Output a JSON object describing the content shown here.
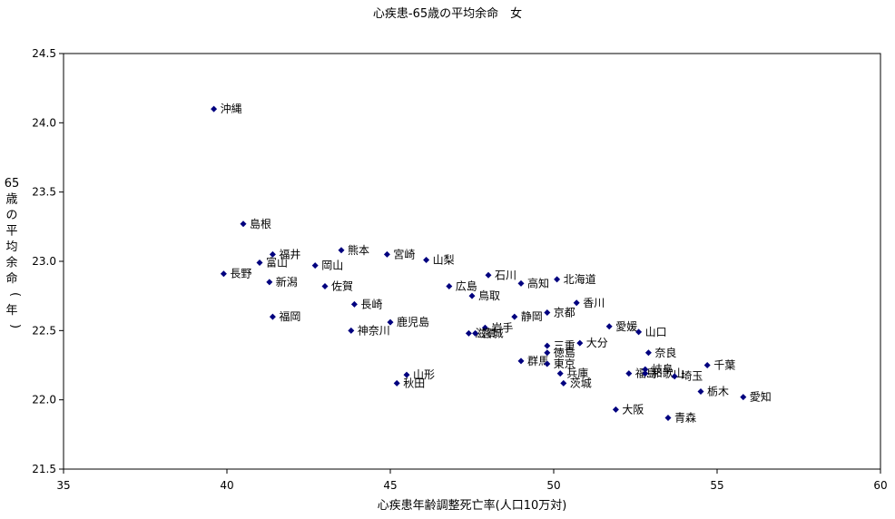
{
  "chart_data": {
    "type": "scatter",
    "title": "心疾患-65歳の平均余命　女",
    "xlabel": "心疾患年齢調整死亡率(人口10万対)",
    "ylabel": "65歳の平均余命(年)",
    "xlim": [
      35,
      60
    ],
    "ylim": [
      21.5,
      24.5
    ],
    "x_ticks": [
      35,
      40,
      45,
      50,
      55,
      60
    ],
    "y_ticks": [
      21.5,
      22.0,
      22.5,
      23.0,
      23.5,
      24.0,
      24.5
    ],
    "x_tick_labels": [
      "35",
      "40",
      "45",
      "50",
      "55",
      "60"
    ],
    "y_tick_labels": [
      "21.5",
      "22.0",
      "22.5",
      "23.0",
      "23.5",
      "24.0",
      "24.5"
    ],
    "grid": false,
    "legend": "none",
    "marker_color": "#00007f",
    "points": [
      {
        "label": "沖縄",
        "x": 39.6,
        "y": 24.1
      },
      {
        "label": "島根",
        "x": 40.5,
        "y": 23.27
      },
      {
        "label": "長野",
        "x": 39.9,
        "y": 22.91
      },
      {
        "label": "富山",
        "x": 41.0,
        "y": 22.99
      },
      {
        "label": "福井",
        "x": 41.4,
        "y": 23.05
      },
      {
        "label": "新潟",
        "x": 41.3,
        "y": 22.85
      },
      {
        "label": "福岡",
        "x": 41.4,
        "y": 22.6
      },
      {
        "label": "岡山",
        "x": 42.7,
        "y": 22.97
      },
      {
        "label": "熊本",
        "x": 43.5,
        "y": 23.08
      },
      {
        "label": "佐賀",
        "x": 43.0,
        "y": 22.82
      },
      {
        "label": "長崎",
        "x": 43.9,
        "y": 22.69
      },
      {
        "label": "神奈川",
        "x": 43.8,
        "y": 22.5
      },
      {
        "label": "宮崎",
        "x": 44.9,
        "y": 23.05
      },
      {
        "label": "鹿児島",
        "x": 45.0,
        "y": 22.56
      },
      {
        "label": "山梨",
        "x": 46.1,
        "y": 23.01
      },
      {
        "label": "山形",
        "x": 45.5,
        "y": 22.18
      },
      {
        "label": "秋田",
        "x": 45.2,
        "y": 22.12
      },
      {
        "label": "広島",
        "x": 46.8,
        "y": 22.82
      },
      {
        "label": "鳥取",
        "x": 47.5,
        "y": 22.75
      },
      {
        "label": "石川",
        "x": 48.0,
        "y": 22.9
      },
      {
        "label": "岩手",
        "x": 47.9,
        "y": 22.52
      },
      {
        "label": "滋賀",
        "x": 47.4,
        "y": 22.48
      },
      {
        "label": "宮城",
        "x": 47.6,
        "y": 22.48
      },
      {
        "label": "高知",
        "x": 49.0,
        "y": 22.84
      },
      {
        "label": "北海道",
        "x": 50.1,
        "y": 22.87
      },
      {
        "label": "静岡",
        "x": 48.8,
        "y": 22.6
      },
      {
        "label": "京都",
        "x": 49.8,
        "y": 22.63
      },
      {
        "label": "香川",
        "x": 50.7,
        "y": 22.7
      },
      {
        "label": "愛媛",
        "x": 51.7,
        "y": 22.53
      },
      {
        "label": "山口",
        "x": 52.6,
        "y": 22.49
      },
      {
        "label": "三重",
        "x": 49.8,
        "y": 22.39
      },
      {
        "label": "大分",
        "x": 50.8,
        "y": 22.41
      },
      {
        "label": "群馬",
        "x": 49.0,
        "y": 22.28
      },
      {
        "label": "徳島",
        "x": 49.8,
        "y": 22.34
      },
      {
        "label": "東京",
        "x": 49.8,
        "y": 22.26
      },
      {
        "label": "兵庫",
        "x": 50.2,
        "y": 22.19
      },
      {
        "label": "茨城",
        "x": 50.3,
        "y": 22.12
      },
      {
        "label": "奈良",
        "x": 52.9,
        "y": 22.34
      },
      {
        "label": "福島",
        "x": 52.3,
        "y": 22.19
      },
      {
        "label": "岐阜",
        "x": 52.8,
        "y": 22.22
      },
      {
        "label": "和歌山",
        "x": 52.8,
        "y": 22.19
      },
      {
        "label": "千葉",
        "x": 54.7,
        "y": 22.25
      },
      {
        "label": "埼玉",
        "x": 53.7,
        "y": 22.17
      },
      {
        "label": "栃木",
        "x": 54.5,
        "y": 22.06
      },
      {
        "label": "愛知",
        "x": 55.8,
        "y": 22.02
      },
      {
        "label": "大阪",
        "x": 51.9,
        "y": 21.93
      },
      {
        "label": "青森",
        "x": 53.5,
        "y": 21.87
      }
    ]
  }
}
